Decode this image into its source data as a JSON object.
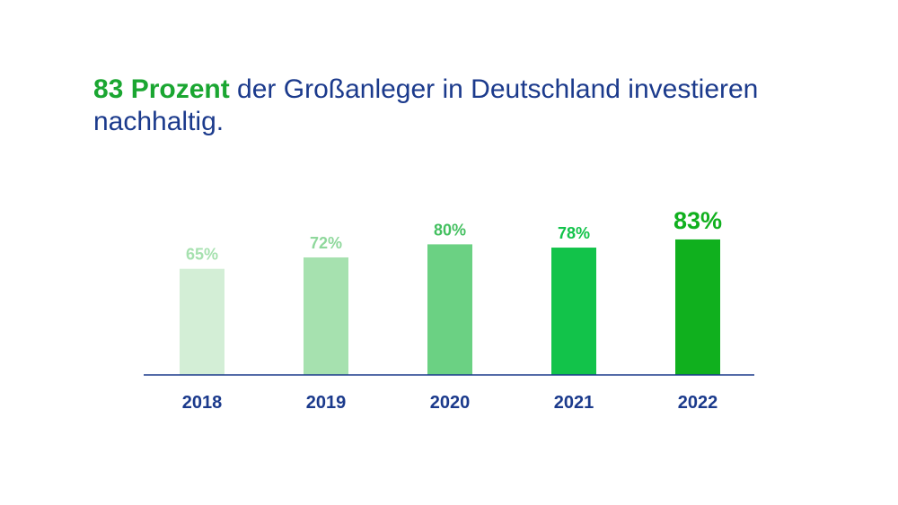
{
  "headline": {
    "highlight": "83 Prozent",
    "rest": " der Großanleger in Deutschland investieren nachhaltig."
  },
  "colors": {
    "headline_text": "#1b3a8c",
    "headline_highlight": "#1aa631",
    "axis_line": "#1b3a8c",
    "year_labels": "#1b3a8c"
  },
  "chart_data": {
    "type": "bar",
    "title": "",
    "xlabel": "",
    "ylabel": "",
    "categories": [
      "2018",
      "2019",
      "2020",
      "2021",
      "2022"
    ],
    "values": [
      65,
      72,
      80,
      78,
      83
    ],
    "value_labels": [
      "65%",
      "72%",
      "80%",
      "78%",
      "83%"
    ],
    "unit": "%",
    "ylim": [
      0,
      100
    ],
    "grid": false,
    "legend": "none",
    "bar_colors": [
      "#d3eed6",
      "#a6e1af",
      "#6bd183",
      "#12c34a",
      "#10b01e"
    ],
    "label_colors": [
      "#a6e1af",
      "#8fd89c",
      "#44c060",
      "#12c34a",
      "#10b01e"
    ],
    "highlighted_index": 4
  }
}
